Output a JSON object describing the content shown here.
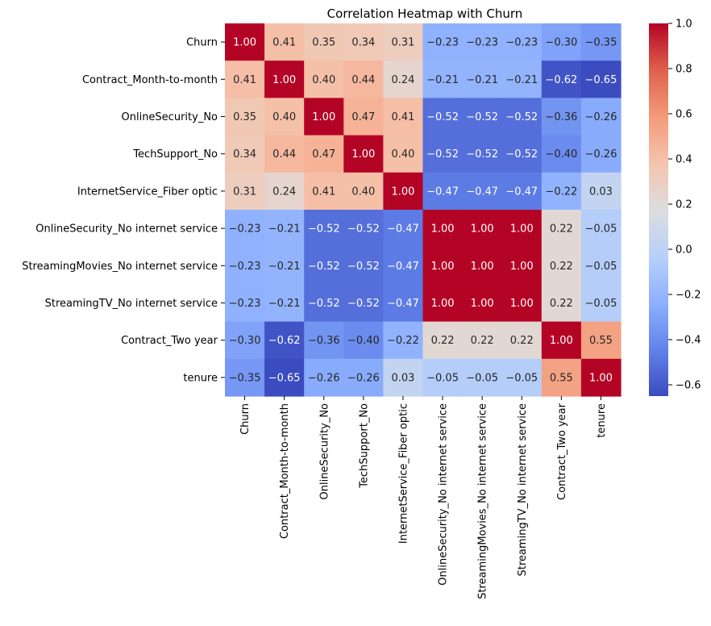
{
  "chart_data": {
    "type": "heatmap",
    "title": "Correlation Heatmap with Churn",
    "xlabel": "",
    "ylabel": "",
    "labels": [
      "Churn",
      "Contract_Month-to-month",
      "OnlineSecurity_No",
      "TechSupport_No",
      "InternetService_Fiber optic",
      "OnlineSecurity_No internet service",
      "StreamingMovies_No internet service",
      "StreamingTV_No internet service",
      "Contract_Two year",
      "tenure"
    ],
    "values": [
      [
        1.0,
        0.41,
        0.35,
        0.34,
        0.31,
        -0.23,
        -0.23,
        -0.23,
        -0.3,
        -0.35
      ],
      [
        0.41,
        1.0,
        0.4,
        0.44,
        0.24,
        -0.21,
        -0.21,
        -0.21,
        -0.62,
        -0.65
      ],
      [
        0.35,
        0.4,
        1.0,
        0.47,
        0.41,
        -0.52,
        -0.52,
        -0.52,
        -0.36,
        -0.26
      ],
      [
        0.34,
        0.44,
        0.47,
        1.0,
        0.4,
        -0.52,
        -0.52,
        -0.52,
        -0.4,
        -0.26
      ],
      [
        0.31,
        0.24,
        0.41,
        0.4,
        1.0,
        -0.47,
        -0.47,
        -0.47,
        -0.22,
        0.03
      ],
      [
        -0.23,
        -0.21,
        -0.52,
        -0.52,
        -0.47,
        1.0,
        1.0,
        1.0,
        0.22,
        -0.05
      ],
      [
        -0.23,
        -0.21,
        -0.52,
        -0.52,
        -0.47,
        1.0,
        1.0,
        1.0,
        0.22,
        -0.05
      ],
      [
        -0.23,
        -0.21,
        -0.52,
        -0.52,
        -0.47,
        1.0,
        1.0,
        1.0,
        0.22,
        -0.05
      ],
      [
        -0.3,
        -0.62,
        -0.36,
        -0.4,
        -0.22,
        0.22,
        0.22,
        0.22,
        1.0,
        0.55
      ],
      [
        -0.35,
        -0.65,
        -0.26,
        -0.26,
        0.03,
        -0.05,
        -0.05,
        -0.05,
        0.55,
        1.0
      ]
    ],
    "colormap": "coolwarm",
    "vmin": -0.65,
    "vmax": 1.0,
    "colorbar_ticks": [
      "1.0",
      "0.8",
      "0.6",
      "0.4",
      "0.2",
      "0.0",
      "−0.2",
      "−0.4",
      "−0.6"
    ],
    "colorbar_tick_values": [
      1.0,
      0.8,
      0.6,
      0.4,
      0.2,
      0.0,
      -0.2,
      -0.4,
      -0.6
    ],
    "annotation_format": "0.00"
  }
}
